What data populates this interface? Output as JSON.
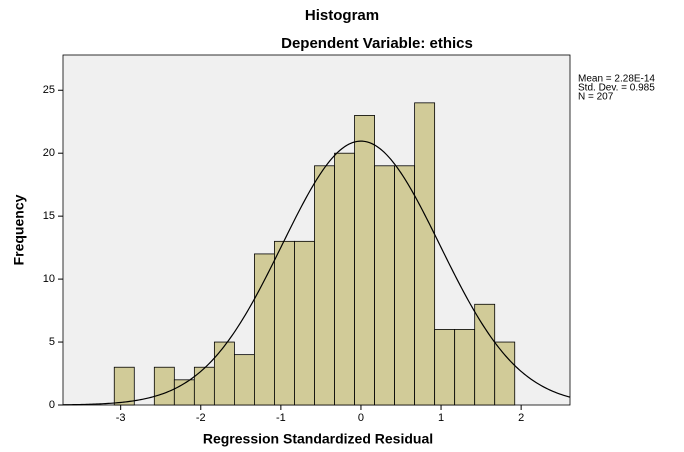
{
  "chart_data": {
    "type": "histogram",
    "title": "Histogram",
    "subtitle": "Dependent Variable: ethics",
    "x_label": "Regression Standardized Residual",
    "y_label": "Frequency",
    "bins": [
      -3.08,
      -2.83,
      -2.58,
      -2.33,
      -2.08,
      -1.83,
      -1.58,
      -1.33,
      -1.08,
      -0.83,
      -0.58,
      -0.33,
      -0.08,
      0.17,
      0.42,
      0.67,
      0.92,
      1.17,
      1.42,
      1.67,
      1.92
    ],
    "values": [
      3,
      0,
      3,
      2,
      3,
      5,
      4,
      12,
      13,
      13,
      19,
      20,
      23,
      19,
      19,
      24,
      6,
      6,
      8,
      5
    ],
    "color": "#d1cb98",
    "xlim": [
      -3.72,
      2.61
    ],
    "xticks": [
      -3,
      -2,
      -1,
      0,
      1,
      2
    ],
    "ylim": [
      0,
      27.8
    ],
    "yticks": [
      0,
      5,
      10,
      15,
      20,
      25
    ],
    "stats": [
      {
        "value": 2.28e-14,
        "label": "Mean = 2.28E-14"
      },
      {
        "value": 0.985,
        "label": "Std. Dev. = 0.985"
      },
      {
        "value": 207,
        "label": "N = 207"
      }
    ]
  }
}
